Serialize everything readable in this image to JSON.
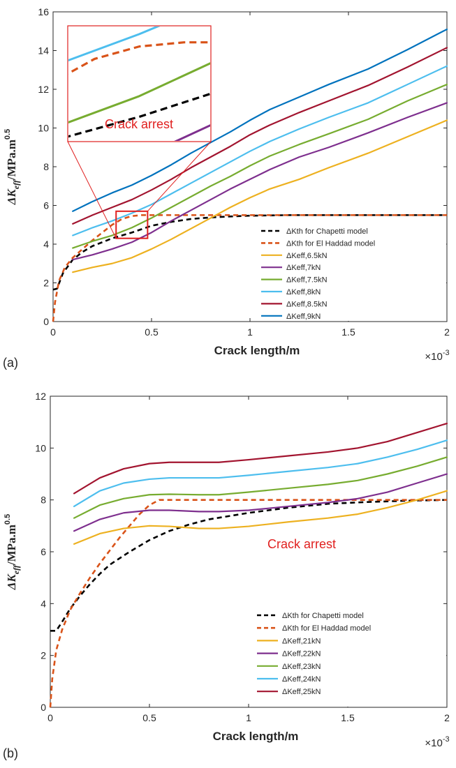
{
  "colors": {
    "chapetti": "#000000",
    "elhaddad": "#d95319",
    "yellow": "#edb120",
    "purple": "#7e2f8e",
    "green": "#77ac30",
    "cyan": "#4dbeee",
    "maroon": "#a2142f",
    "blue": "#0072bd",
    "arrest": "#e0201f"
  },
  "chart_data": [
    {
      "type": "line",
      "panel_label": "(a)",
      "xlabel": "Crack length/m",
      "ylabel": "ΔK",
      "ylabel_sub": "eff",
      "ylabel_rest": "/MPa.m",
      "ylabel_sup": "0.5",
      "x_multiplier": "×10",
      "x_multiplier_exp": "-3",
      "xlim": [
        0,
        2
      ],
      "ylim": [
        0,
        16
      ],
      "xticks": [
        0,
        0.5,
        1,
        1.5,
        2
      ],
      "xtick_labels": [
        "0",
        "0.5",
        "1",
        "1.5",
        "2"
      ],
      "yticks": [
        0,
        2,
        4,
        6,
        8,
        10,
        12,
        14,
        16
      ],
      "ytick_labels": [
        "0",
        "2",
        "4",
        "6",
        "8",
        "10",
        "12",
        "14",
        "16"
      ],
      "annotation": "Crack arrest",
      "zoom_box": {
        "x": [
          0.32,
          0.48
        ],
        "y": [
          4.3,
          5.7
        ]
      },
      "legend_position": "bottom-right",
      "series": [
        {
          "name": "ΔKth for Chapetti model",
          "color_key": "chapetti",
          "dashed": true,
          "x": [
            0,
            0.02,
            0.05,
            0.1,
            0.15,
            0.2,
            0.25,
            0.3,
            0.35,
            0.4,
            0.5,
            0.6,
            0.7,
            0.8,
            0.9,
            1.0,
            1.2,
            1.4,
            1.6,
            1.8,
            2.0
          ],
          "y": [
            1.65,
            1.7,
            2.5,
            3.2,
            3.6,
            3.9,
            4.1,
            4.3,
            4.45,
            4.6,
            4.95,
            5.15,
            5.3,
            5.38,
            5.43,
            5.47,
            5.5,
            5.5,
            5.5,
            5.5,
            5.5
          ]
        },
        {
          "name": "ΔKth for El Haddad model",
          "color_key": "elhaddad",
          "dashed": true,
          "x": [
            0,
            0.01,
            0.03,
            0.06,
            0.1,
            0.15,
            0.2,
            0.25,
            0.3,
            0.35,
            0.4,
            0.45,
            0.5,
            0.7,
            1.0,
            1.5,
            2.0
          ],
          "y": [
            0,
            1.0,
            2.1,
            2.8,
            3.3,
            3.75,
            4.2,
            4.6,
            5.0,
            5.3,
            5.45,
            5.5,
            5.5,
            5.5,
            5.5,
            5.5,
            5.5
          ]
        },
        {
          "name": "ΔKeff,6.5kN",
          "color_key": "yellow",
          "x": [
            0.1,
            0.2,
            0.3,
            0.4,
            0.5,
            0.6,
            0.7,
            0.8,
            0.9,
            1.0,
            1.1,
            1.25,
            1.4,
            1.6,
            1.8,
            2.0
          ],
          "y": [
            2.55,
            2.8,
            3.0,
            3.3,
            3.75,
            4.25,
            4.8,
            5.35,
            5.9,
            6.4,
            6.85,
            7.35,
            7.95,
            8.7,
            9.55,
            10.4
          ]
        },
        {
          "name": "ΔKeff,7kN",
          "color_key": "purple",
          "x": [
            0.1,
            0.2,
            0.3,
            0.4,
            0.5,
            0.6,
            0.7,
            0.8,
            0.9,
            1.0,
            1.1,
            1.25,
            1.4,
            1.6,
            1.8,
            2.0
          ],
          "y": [
            3.2,
            3.45,
            3.75,
            4.1,
            4.6,
            5.2,
            5.75,
            6.3,
            6.85,
            7.35,
            7.85,
            8.5,
            9.0,
            9.75,
            10.55,
            11.3
          ]
        },
        {
          "name": "ΔKeff,7.5kN",
          "color_key": "green",
          "x": [
            0.1,
            0.2,
            0.3,
            0.4,
            0.5,
            0.6,
            0.7,
            0.8,
            0.9,
            1.0,
            1.1,
            1.25,
            1.4,
            1.6,
            1.8,
            2.0
          ],
          "y": [
            3.8,
            4.15,
            4.45,
            4.85,
            5.35,
            5.9,
            6.45,
            7.0,
            7.5,
            8.05,
            8.55,
            9.15,
            9.7,
            10.45,
            11.4,
            12.25
          ]
        },
        {
          "name": "ΔKeff,8kN",
          "color_key": "cyan",
          "x": [
            0.1,
            0.2,
            0.3,
            0.4,
            0.5,
            0.6,
            0.7,
            0.8,
            0.9,
            1.0,
            1.1,
            1.25,
            1.4,
            1.6,
            1.8,
            2.0
          ],
          "y": [
            4.45,
            4.85,
            5.2,
            5.6,
            6.05,
            6.6,
            7.15,
            7.7,
            8.25,
            8.8,
            9.3,
            9.95,
            10.55,
            11.3,
            12.25,
            13.2
          ]
        },
        {
          "name": "ΔKeff,8.5kN",
          "color_key": "maroon",
          "x": [
            0.1,
            0.2,
            0.3,
            0.4,
            0.5,
            0.6,
            0.7,
            0.8,
            0.9,
            1.0,
            1.1,
            1.25,
            1.4,
            1.6,
            1.8,
            2.0
          ],
          "y": [
            5.05,
            5.5,
            5.9,
            6.3,
            6.8,
            7.35,
            7.95,
            8.5,
            9.05,
            9.65,
            10.15,
            10.8,
            11.4,
            12.2,
            13.15,
            14.15
          ]
        },
        {
          "name": "ΔKeff,9kN",
          "color_key": "blue",
          "x": [
            0.1,
            0.2,
            0.3,
            0.4,
            0.5,
            0.6,
            0.7,
            0.8,
            0.9,
            1.0,
            1.1,
            1.25,
            1.4,
            1.6,
            1.8,
            2.0
          ],
          "y": [
            5.7,
            6.2,
            6.65,
            7.05,
            7.55,
            8.1,
            8.7,
            9.25,
            9.8,
            10.4,
            10.95,
            11.6,
            12.25,
            13.05,
            14.05,
            15.1
          ]
        }
      ]
    },
    {
      "type": "line",
      "panel_label": "(b)",
      "xlabel": "Crack length/m",
      "ylabel": "ΔK",
      "ylabel_sub": "eff",
      "ylabel_rest": "/MPa.m",
      "ylabel_sup": "0.5",
      "x_multiplier": "×10",
      "x_multiplier_exp": "-3",
      "xlim": [
        0,
        2
      ],
      "ylim": [
        0,
        12
      ],
      "xticks": [
        0,
        0.5,
        1,
        1.5,
        2
      ],
      "xtick_labels": [
        "0",
        "0.5",
        "1",
        "1.5",
        "2"
      ],
      "yticks": [
        0,
        2,
        4,
        6,
        8,
        10,
        12
      ],
      "ytick_labels": [
        "0",
        "2",
        "4",
        "6",
        "8",
        "10",
        "12"
      ],
      "annotation": "Crack arrest",
      "legend_position": "bottom-right",
      "series": [
        {
          "name": "ΔKth for Chapetti model",
          "color_key": "chapetti",
          "dashed": true,
          "x": [
            0,
            0.03,
            0.06,
            0.1,
            0.15,
            0.2,
            0.25,
            0.3,
            0.4,
            0.5,
            0.6,
            0.7,
            0.8,
            1.0,
            1.2,
            1.4,
            1.6,
            1.8,
            2.0
          ],
          "y": [
            2.95,
            2.95,
            3.3,
            3.8,
            4.3,
            4.75,
            5.15,
            5.5,
            6.0,
            6.45,
            6.8,
            7.05,
            7.25,
            7.5,
            7.7,
            7.85,
            7.92,
            7.97,
            8.0
          ]
        },
        {
          "name": "ΔKth for El Haddad model",
          "color_key": "elhaddad",
          "dashed": true,
          "x": [
            0,
            0.01,
            0.03,
            0.06,
            0.1,
            0.15,
            0.2,
            0.25,
            0.3,
            0.35,
            0.4,
            0.45,
            0.5,
            0.55,
            0.6,
            1.0,
            1.5,
            2.0
          ],
          "y": [
            0,
            1.1,
            2.2,
            3.0,
            3.75,
            4.4,
            5.0,
            5.55,
            6.05,
            6.55,
            7.0,
            7.45,
            7.8,
            8.0,
            8.0,
            8.0,
            8.0,
            8.0
          ]
        },
        {
          "name": "ΔKeff,21kN",
          "color_key": "yellow",
          "x": [
            0.12,
            0.25,
            0.37,
            0.5,
            0.6,
            0.75,
            0.85,
            1.0,
            1.2,
            1.4,
            1.55,
            1.7,
            1.85,
            2.0
          ],
          "y": [
            6.3,
            6.7,
            6.9,
            7.0,
            6.98,
            6.9,
            6.9,
            6.98,
            7.15,
            7.3,
            7.45,
            7.7,
            8.0,
            8.35
          ]
        },
        {
          "name": "ΔKeff,22kN",
          "color_key": "purple",
          "x": [
            0.12,
            0.25,
            0.37,
            0.5,
            0.6,
            0.75,
            0.85,
            1.0,
            1.2,
            1.4,
            1.55,
            1.7,
            1.85,
            2.0
          ],
          "y": [
            6.8,
            7.25,
            7.5,
            7.6,
            7.6,
            7.55,
            7.55,
            7.6,
            7.75,
            7.9,
            8.05,
            8.3,
            8.65,
            9.0
          ]
        },
        {
          "name": "ΔKeff,23kN",
          "color_key": "green",
          "x": [
            0.12,
            0.25,
            0.37,
            0.5,
            0.6,
            0.75,
            0.85,
            1.0,
            1.2,
            1.4,
            1.55,
            1.7,
            1.85,
            2.0
          ],
          "y": [
            7.3,
            7.8,
            8.05,
            8.2,
            8.22,
            8.2,
            8.2,
            8.3,
            8.45,
            8.6,
            8.75,
            9.0,
            9.3,
            9.65
          ]
        },
        {
          "name": "ΔKeff,24kN",
          "color_key": "cyan",
          "x": [
            0.12,
            0.25,
            0.37,
            0.5,
            0.6,
            0.75,
            0.85,
            1.0,
            1.2,
            1.4,
            1.55,
            1.7,
            1.85,
            2.0
          ],
          "y": [
            7.75,
            8.35,
            8.65,
            8.8,
            8.85,
            8.85,
            8.85,
            8.95,
            9.1,
            9.25,
            9.4,
            9.65,
            9.95,
            10.3
          ]
        },
        {
          "name": "ΔKeff,25kN",
          "color_key": "maroon",
          "x": [
            0.12,
            0.25,
            0.37,
            0.5,
            0.6,
            0.75,
            0.85,
            1.0,
            1.2,
            1.4,
            1.55,
            1.7,
            1.85,
            2.0
          ],
          "y": [
            8.25,
            8.85,
            9.2,
            9.4,
            9.45,
            9.45,
            9.45,
            9.55,
            9.7,
            9.85,
            10.0,
            10.25,
            10.6,
            10.95
          ]
        }
      ]
    }
  ]
}
